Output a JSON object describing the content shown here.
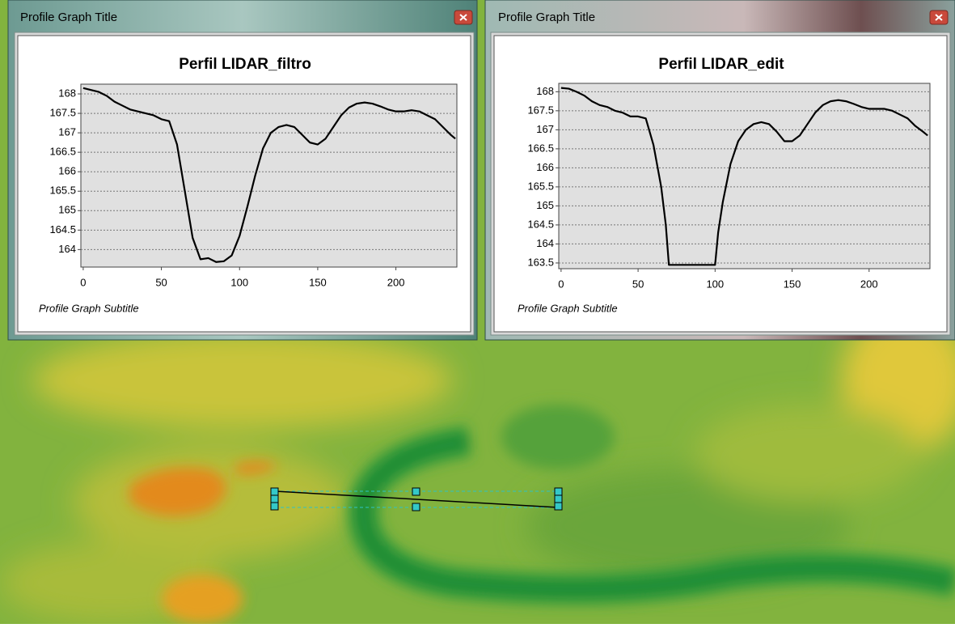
{
  "windows": [
    {
      "title": "Profile Graph Title"
    },
    {
      "title": "Profile Graph Title"
    }
  ],
  "chart_data": [
    {
      "type": "line",
      "title": "Perfil LIDAR_filtro",
      "subtitle": "Profile Graph Subtitle",
      "color": "#000000",
      "grid": true,
      "x": [
        0,
        5,
        10,
        15,
        20,
        25,
        30,
        35,
        40,
        45,
        50,
        55,
        60,
        65,
        70,
        75,
        80,
        85,
        90,
        95,
        100,
        105,
        110,
        115,
        120,
        125,
        130,
        135,
        140,
        145,
        150,
        155,
        160,
        165,
        170,
        175,
        180,
        185,
        190,
        195,
        200,
        205,
        210,
        215,
        220,
        225,
        230,
        235,
        238
      ],
      "values": [
        168.15,
        168.1,
        168.05,
        167.95,
        167.8,
        167.7,
        167.6,
        167.55,
        167.5,
        167.45,
        167.35,
        167.3,
        166.7,
        165.5,
        164.3,
        163.75,
        163.78,
        163.68,
        163.7,
        163.85,
        164.35,
        165.1,
        165.9,
        166.6,
        167.0,
        167.15,
        167.2,
        167.15,
        166.95,
        166.75,
        166.7,
        166.85,
        167.15,
        167.45,
        167.65,
        167.75,
        167.78,
        167.75,
        167.68,
        167.6,
        167.55,
        167.55,
        167.58,
        167.55,
        167.45,
        167.35,
        167.15,
        166.95,
        166.85
      ],
      "xlim": [
        -1.5,
        239
      ],
      "ylim": [
        163.55,
        168.25
      ],
      "xticks": [
        0,
        50,
        100,
        150,
        200
      ],
      "yticks": [
        164,
        164.5,
        165,
        165.5,
        166,
        166.5,
        167,
        167.5,
        168
      ]
    },
    {
      "type": "line",
      "title": "Perfil LIDAR_edit",
      "subtitle": "Profile Graph Subtitle",
      "color": "#000000",
      "grid": true,
      "x": [
        0,
        5,
        10,
        15,
        20,
        25,
        30,
        35,
        40,
        45,
        50,
        55,
        60,
        65,
        68,
        70,
        100,
        102,
        105,
        110,
        115,
        120,
        125,
        130,
        135,
        140,
        145,
        150,
        155,
        160,
        165,
        170,
        175,
        180,
        185,
        190,
        195,
        200,
        205,
        210,
        215,
        220,
        225,
        230,
        235,
        238
      ],
      "values": [
        168.1,
        168.08,
        168.0,
        167.9,
        167.75,
        167.65,
        167.6,
        167.5,
        167.45,
        167.35,
        167.35,
        167.3,
        166.6,
        165.5,
        164.5,
        163.45,
        163.45,
        164.3,
        165.1,
        166.1,
        166.7,
        167.0,
        167.15,
        167.2,
        167.15,
        166.95,
        166.7,
        166.7,
        166.85,
        167.15,
        167.45,
        167.65,
        167.75,
        167.78,
        167.75,
        167.68,
        167.6,
        167.55,
        167.55,
        167.55,
        167.5,
        167.4,
        167.3,
        167.1,
        166.95,
        166.85
      ],
      "xlim": [
        -1.5,
        239.5
      ],
      "ylim": [
        163.35,
        168.22
      ],
      "xticks": [
        0,
        50,
        100,
        150,
        200
      ],
      "yticks": [
        163.5,
        164,
        164.5,
        165,
        165.5,
        166,
        166.5,
        167,
        167.5,
        168
      ]
    }
  ]
}
